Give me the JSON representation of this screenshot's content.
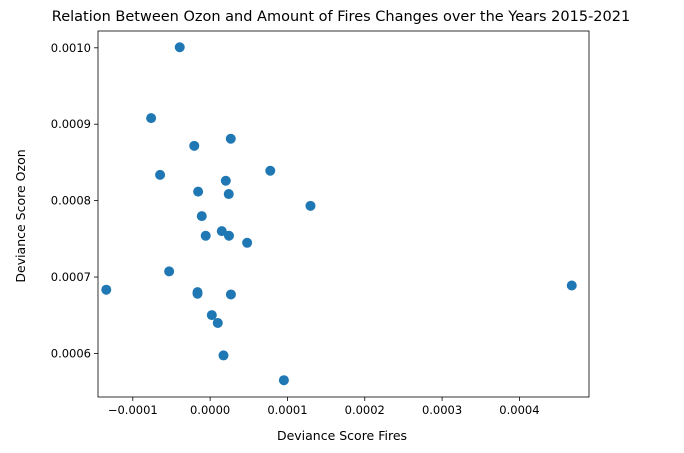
{
  "chart_data": {
    "type": "scatter",
    "title": "Relation Between Ozon and Amount of Fires Changes over the Years 2015-2021",
    "xlabel": "Deviance Score Fires",
    "ylabel": "Deviance Score Ozon",
    "xlim": [
      -0.000145,
      0.00049
    ],
    "ylim": [
      0.000543,
      0.001022
    ],
    "xticks": [
      -0.0001,
      0.0,
      0.0001,
      0.0002,
      0.0003,
      0.0004
    ],
    "xtick_labels": [
      "−0.0001",
      "0.0000",
      "0.0001",
      "0.0002",
      "0.0003",
      "0.0004"
    ],
    "yticks": [
      0.0006,
      0.0007,
      0.0008,
      0.0009,
      0.001
    ],
    "ytick_labels": [
      "0.0006",
      "0.0007",
      "0.0008",
      "0.0009",
      "0.0010"
    ],
    "grid": false,
    "marker_color": "#1f77b4",
    "points": [
      {
        "x": -3.93e-05,
        "y": 0.0010007
      },
      {
        "x": -7.63e-05,
        "y": 0.000908
      },
      {
        "x": -2.05e-05,
        "y": 0.0008717
      },
      {
        "x": 2.67e-05,
        "y": 0.000881
      },
      {
        "x": -6.47e-05,
        "y": 0.0008337
      },
      {
        "x": 7.78e-05,
        "y": 0.0008391
      },
      {
        "x": 2.03e-05,
        "y": 0.000826
      },
      {
        "x": -1.55e-05,
        "y": 0.0008118
      },
      {
        "x": 2.41e-05,
        "y": 0.0008086
      },
      {
        "x": 0.0001298,
        "y": 0.0007932
      },
      {
        "x": -1.08e-05,
        "y": 0.0007797
      },
      {
        "x": 1.51e-05,
        "y": 0.0007601
      },
      {
        "x": -5.7e-06,
        "y": 0.000754
      },
      {
        "x": 2.44e-05,
        "y": 0.000754
      },
      {
        "x": 4.79e-05,
        "y": 0.0007448
      },
      {
        "x": -5.3e-05,
        "y": 0.0007074
      },
      {
        "x": -0.0001343,
        "y": 0.0006834
      },
      {
        "x": -1.63e-05,
        "y": 0.0006802
      },
      {
        "x": -1.63e-05,
        "y": 0.0006782
      },
      {
        "x": 2.69e-05,
        "y": 0.0006772
      },
      {
        "x": 0.0004677,
        "y": 0.0006889
      },
      {
        "x": 2.2e-06,
        "y": 0.0006502
      },
      {
        "x": 9.9e-06,
        "y": 0.0006399
      },
      {
        "x": 1.73e-05,
        "y": 0.0005974
      },
      {
        "x": 9.54e-05,
        "y": 0.000565
      }
    ]
  }
}
